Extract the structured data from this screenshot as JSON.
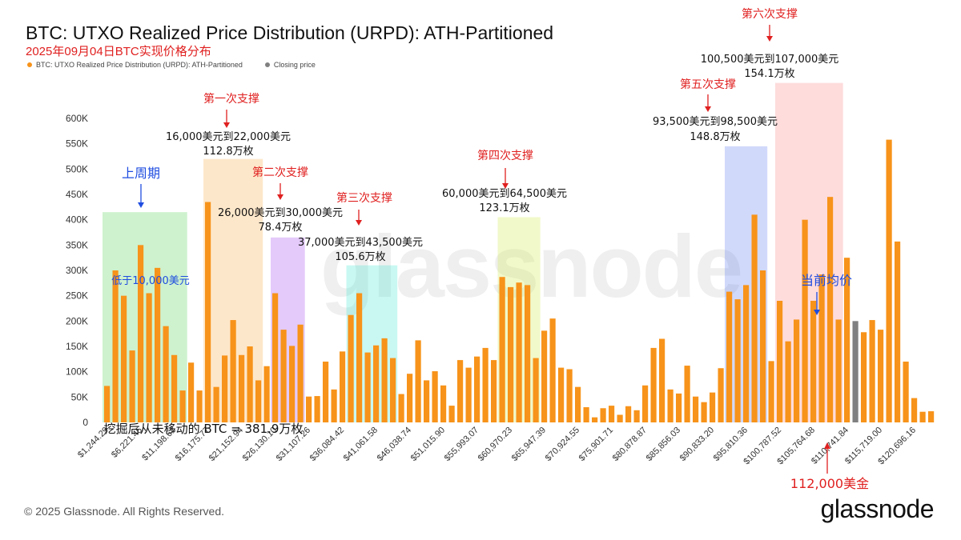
{
  "title": "BTC: UTXO Realized Price Distribution (URPD): ATH-Partitioned",
  "subtitle": "2025年09月04日BTC实现价格分布",
  "legend": [
    {
      "label": "BTC: UTXO Realized Price Distribution (URPD): ATH-Partitioned",
      "color": "#f7931a"
    },
    {
      "label": "Closing price",
      "color": "#808080"
    }
  ],
  "footer": "© 2025 Glassnode. All Rights Reserved.",
  "brand": "glassnode",
  "watermark": "glassnode",
  "colors": {
    "bar": "#f7931a",
    "closing": "#808080"
  },
  "chart_data": {
    "type": "bar",
    "ylim": [
      0,
      600000
    ],
    "yticks": [
      "0",
      "50K",
      "100K",
      "150K",
      "200K",
      "250K",
      "300K",
      "350K",
      "400K",
      "450K",
      "500K",
      "550K",
      "600K"
    ],
    "xticks": [
      "$1,244.29",
      "$6,221.45",
      "$11,198.61",
      "$16,175.77",
      "$21,152.94",
      "$26,130.10",
      "$31,107.26",
      "$36,084.42",
      "$41,061.58",
      "$46,038.74",
      "$51,015.90",
      "$55,993.07",
      "$60,970.23",
      "$65,947.39",
      "$70,924.55",
      "$75,901.71",
      "$80,878.87",
      "$85,856.03",
      "$90,833.20",
      "$95,810.36",
      "$100,787.52",
      "$105,764.68",
      "$110,741.84",
      "$115,719.00",
      "$120,696.16"
    ],
    "values": [
      72000,
      300000,
      250000,
      142000,
      350000,
      255000,
      305000,
      190000,
      133000,
      63000,
      118000,
      63000,
      435000,
      70000,
      132000,
      202000,
      133000,
      150000,
      83000,
      111000,
      255000,
      183000,
      151000,
      193000,
      51000,
      52000,
      120000,
      65000,
      140000,
      212000,
      255000,
      138000,
      152000,
      166000,
      127000,
      56000,
      96000,
      162000,
      83000,
      101000,
      73000,
      33000,
      123000,
      108000,
      130000,
      147000,
      123000,
      287000,
      267000,
      276000,
      271000,
      127000,
      181000,
      205000,
      108000,
      105000,
      70000,
      30000,
      10000,
      28000,
      33000,
      15000,
      32000,
      24000,
      73000,
      147000,
      165000,
      65000,
      57000,
      112000,
      51000,
      40000,
      59000,
      107000,
      258000,
      243000,
      271000,
      410000,
      300000,
      121000,
      240000,
      160000,
      203000,
      400000,
      240000,
      292000,
      445000,
      203000,
      325000,
      200000,
      178000,
      202000,
      183000,
      558000,
      357000,
      120000,
      48000,
      21000,
      22000
    ],
    "closing_index": 89,
    "bands": [
      {
        "start": 0,
        "end": 9,
        "color": "rgba(80,210,80,0.28)",
        "top": 415000
      },
      {
        "start": 12,
        "end": 18,
        "color": "rgba(250,175,80,0.30)",
        "top": 520000
      },
      {
        "start": 20,
        "end": 23,
        "color": "rgba(170,90,240,0.32)",
        "top": 365000
      },
      {
        "start": 29,
        "end": 34,
        "color": "rgba(60,230,210,0.28)",
        "top": 310000
      },
      {
        "start": 47,
        "end": 51,
        "color": "rgba(210,235,90,0.32)",
        "top": 405000
      },
      {
        "start": 74,
        "end": 78,
        "color": "rgba(90,120,240,0.28)",
        "top": 545000
      },
      {
        "start": 80,
        "end": 87,
        "color": "rgba(250,120,120,0.26)",
        "top": 670000
      }
    ]
  },
  "annotations": {
    "a_prev_cycle": "上周期",
    "a_below": "低于10,000美元",
    "a_sup1": "第一次支撑",
    "a_sup1_range": "16,000美元到22,000美元",
    "a_sup1_amt": "112.8万枚",
    "a_sup2": "第二次支撑",
    "a_sup2_range": "26,000美元到30,000美元",
    "a_sup2_amt": "78.4万枚",
    "a_sup3": "第三次支撑",
    "a_sup3_range": "37,000美元到43,500美元",
    "a_sup3_amt": "105.6万枚",
    "a_sup4": "第四次支撑",
    "a_sup4_range": "60,000美元到64,500美元",
    "a_sup4_amt": "123.1万枚",
    "a_sup5": "第五次支撑",
    "a_sup5_range": "93,500美元到98,500美元",
    "a_sup5_amt": "148.8万枚",
    "a_sup6": "第六次支撑",
    "a_sup6_range": "100,500美元到107,000美元",
    "a_sup6_amt": "154.1万枚",
    "a_current": "当前均价",
    "a_112k": "112,000美金",
    "a_unmoved": "挖掘后从未移动的 BTC = 381.9万枚"
  }
}
